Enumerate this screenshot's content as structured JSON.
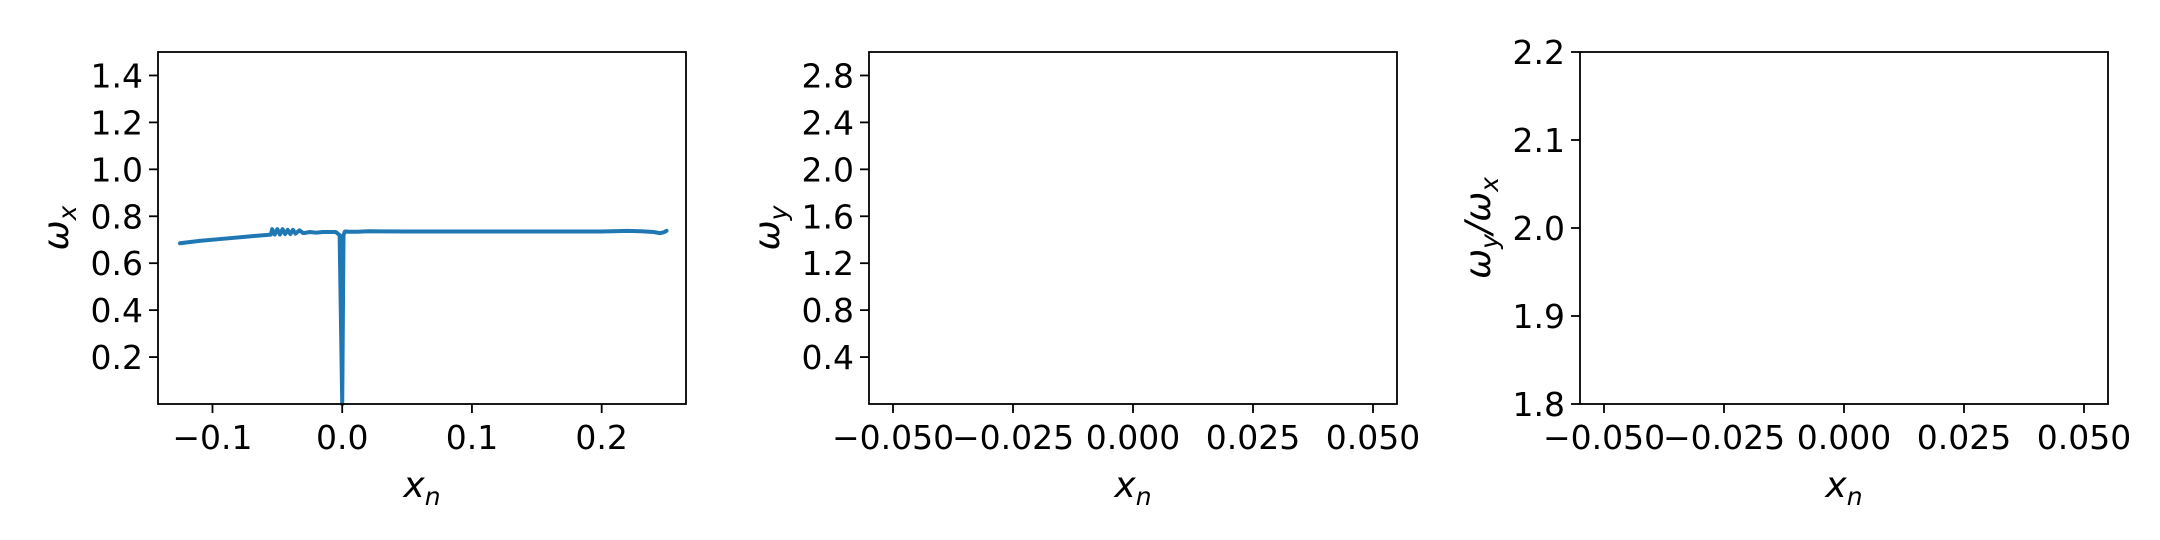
{
  "chart_data": [
    {
      "type": "line",
      "xlabel": "x",
      "xlabel_sub": "n",
      "ylabel": "ω",
      "ylabel_sub": "x",
      "xlim": [
        -0.142,
        0.265
      ],
      "ylim": [
        0.0,
        1.5
      ],
      "xticks": [
        {
          "value": -0.1,
          "label": "−0.1"
        },
        {
          "value": 0.0,
          "label": "0.0"
        },
        {
          "value": 0.1,
          "label": "0.1"
        },
        {
          "value": 0.2,
          "label": "0.2"
        }
      ],
      "yticks": [
        {
          "value": 0.2,
          "label": "0.2"
        },
        {
          "value": 0.4,
          "label": "0.4"
        },
        {
          "value": 0.6,
          "label": "0.6"
        },
        {
          "value": 0.8,
          "label": "0.8"
        },
        {
          "value": 1.0,
          "label": "1.0"
        },
        {
          "value": 1.2,
          "label": "1.2"
        },
        {
          "value": 1.4,
          "label": "1.4"
        }
      ],
      "grid": false,
      "series": [
        {
          "color": "#1f77b4",
          "x": [
            -0.125,
            -0.11,
            -0.09,
            -0.07,
            -0.055,
            -0.054,
            -0.052,
            -0.05,
            -0.048,
            -0.046,
            -0.044,
            -0.042,
            -0.04,
            -0.038,
            -0.036,
            -0.033,
            -0.03,
            -0.025,
            -0.02,
            -0.015,
            -0.01,
            -0.005,
            -0.002,
            0.0,
            0.001,
            0.002,
            0.003,
            0.005,
            0.008,
            0.012,
            0.016,
            0.02,
            0.05,
            0.1,
            0.15,
            0.2,
            0.22,
            0.23,
            0.24,
            0.245,
            0.248,
            0.25
          ],
          "y": [
            0.685,
            0.695,
            0.705,
            0.715,
            0.722,
            0.745,
            0.722,
            0.745,
            0.722,
            0.745,
            0.724,
            0.742,
            0.724,
            0.742,
            0.726,
            0.74,
            0.728,
            0.733,
            0.73,
            0.733,
            0.733,
            0.733,
            0.72,
            0.0,
            0.72,
            0.735,
            0.735,
            0.734,
            0.734,
            0.734,
            0.735,
            0.736,
            0.735,
            0.735,
            0.735,
            0.735,
            0.738,
            0.736,
            0.733,
            0.728,
            0.732,
            0.738
          ]
        }
      ]
    },
    {
      "type": "line",
      "xlabel": "x",
      "xlabel_sub": "n",
      "ylabel": "ω",
      "ylabel_sub": "y",
      "xlim": [
        -0.055,
        0.055
      ],
      "ylim": [
        0.0,
        3.0
      ],
      "xticks": [
        {
          "value": -0.05,
          "label": "−0.050"
        },
        {
          "value": -0.025,
          "label": "−0.025"
        },
        {
          "value": 0.0,
          "label": "0.000"
        },
        {
          "value": 0.025,
          "label": "0.025"
        },
        {
          "value": 0.05,
          "label": "0.050"
        }
      ],
      "yticks": [
        {
          "value": 0.4,
          "label": "0.4"
        },
        {
          "value": 0.8,
          "label": "0.8"
        },
        {
          "value": 1.2,
          "label": "1.2"
        },
        {
          "value": 1.6,
          "label": "1.6"
        },
        {
          "value": 2.0,
          "label": "2.0"
        },
        {
          "value": 2.4,
          "label": "2.4"
        },
        {
          "value": 2.8,
          "label": "2.8"
        }
      ],
      "grid": false,
      "series": []
    },
    {
      "type": "line",
      "xlabel": "x",
      "xlabel_sub": "n",
      "ylabel": "ω",
      "ylabel_sub": "y",
      "ylabel2": "/ω",
      "ylabel2_sub": "x",
      "xlim": [
        -0.055,
        0.055
      ],
      "ylim": [
        1.8,
        2.2
      ],
      "xticks": [
        {
          "value": -0.05,
          "label": "−0.050"
        },
        {
          "value": -0.025,
          "label": "−0.025"
        },
        {
          "value": 0.0,
          "label": "0.000"
        },
        {
          "value": 0.025,
          "label": "0.025"
        },
        {
          "value": 0.05,
          "label": "0.050"
        }
      ],
      "yticks": [
        {
          "value": 1.8,
          "label": "1.8"
        },
        {
          "value": 1.9,
          "label": "1.9"
        },
        {
          "value": 2.0,
          "label": "2.0"
        },
        {
          "value": 2.1,
          "label": "2.1"
        },
        {
          "value": 2.2,
          "label": "2.2"
        }
      ],
      "grid": false,
      "series": []
    }
  ]
}
